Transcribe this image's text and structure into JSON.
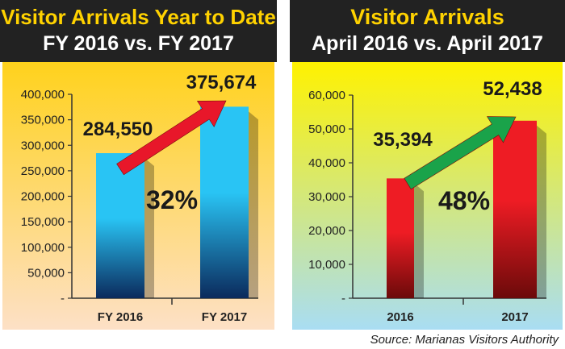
{
  "source": "Source: Marianas Visitors Authority",
  "colors": {
    "header_bg": "#222222",
    "title_color": "#ffd200",
    "subtitle_color": "#ffffff",
    "left_bg_top": "#ffd21c",
    "left_bg_bottom": "#fde0c6",
    "right_bg_top": "#fff200",
    "right_bg_bottom": "#a9ddf3",
    "left_bar_top": "#29c4f4",
    "left_bar_bottom": "#0b2a5c",
    "right_bar_top": "#ee1c24",
    "right_bar_bottom": "#6b0a0a",
    "left_arrow": "#e8172a",
    "right_arrow": "#1aa34a"
  },
  "chart_data": [
    {
      "type": "bar",
      "title": "Visitor Arrivals Year to Date",
      "subtitle": "FY 2016 vs. FY 2017",
      "categories": [
        "FY 2016",
        "FY 2017"
      ],
      "values": [
        284550,
        375674
      ],
      "value_labels": [
        "284,550",
        "375,674"
      ],
      "ylim": [
        0,
        400000
      ],
      "yticks": [
        0,
        50000,
        100000,
        150000,
        200000,
        250000,
        300000,
        350000,
        400000
      ],
      "ytick_labels": [
        "-",
        "50,000",
        "100,000",
        "150,000",
        "200,000",
        "250,000",
        "300,000",
        "350,000",
        "400,000"
      ],
      "change_label": "32%",
      "grid": false
    },
    {
      "type": "bar",
      "title": "Visitor Arrivals",
      "subtitle": "April 2016 vs. April 2017",
      "categories": [
        "2016",
        "2017"
      ],
      "values": [
        35394,
        52438
      ],
      "value_labels": [
        "35,394",
        "52,438"
      ],
      "ylim": [
        0,
        60000
      ],
      "yticks": [
        0,
        10000,
        20000,
        30000,
        40000,
        50000,
        60000
      ],
      "ytick_labels": [
        "-",
        "10,000",
        "20,000",
        "30,000",
        "40,000",
        "50,000",
        "60,000"
      ],
      "change_label": "48%",
      "grid": false
    }
  ]
}
